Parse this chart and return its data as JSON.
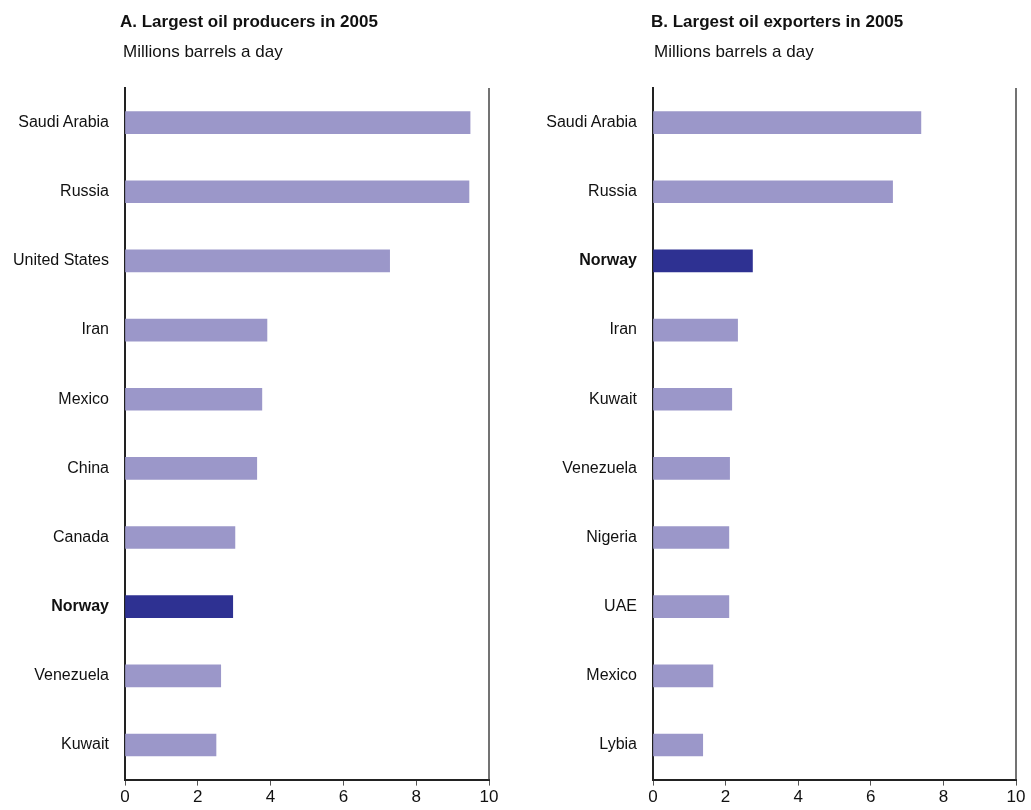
{
  "chart_data": [
    {
      "type": "bar",
      "orientation": "horizontal",
      "title": "A. Largest oil producers in 2005",
      "subtitle": "Millions barrels a day",
      "categories": [
        "Saudi Arabia",
        "Russia",
        "United States",
        "Iran",
        "Mexico",
        "China",
        "Canada",
        "Norway",
        "Venezuela",
        "Kuwait"
      ],
      "values": [
        9.48,
        9.45,
        7.27,
        3.9,
        3.76,
        3.62,
        3.02,
        2.96,
        2.63,
        2.5
      ],
      "colors": [
        "#9b97c9",
        "#9b97c9",
        "#9b97c9",
        "#9b97c9",
        "#9b97c9",
        "#9b97c9",
        "#9b97c9",
        "#2e3192",
        "#9b97c9",
        "#9b97c9"
      ],
      "xlim": [
        0,
        10
      ],
      "xticks": [
        0,
        2,
        4,
        6,
        8,
        10
      ],
      "grid": false,
      "legend": false
    },
    {
      "type": "bar",
      "orientation": "horizontal",
      "title": "B. Largest oil exporters in 2005",
      "subtitle": "Millions barrels a day",
      "categories": [
        "Saudi Arabia",
        "Russia",
        "Norway",
        "Iran",
        "Kuwait",
        "Venezuela",
        "Nigeria",
        "UAE",
        "Mexico",
        "Lybia"
      ],
      "values": [
        7.38,
        6.6,
        2.74,
        2.33,
        2.17,
        2.11,
        2.09,
        2.09,
        1.65,
        1.37
      ],
      "colors": [
        "#9b97c9",
        "#9b97c9",
        "#2e3192",
        "#9b97c9",
        "#9b97c9",
        "#9b97c9",
        "#9b97c9",
        "#9b97c9",
        "#9b97c9",
        "#9b97c9"
      ],
      "xlim": [
        0,
        10
      ],
      "xticks": [
        0,
        2,
        4,
        6,
        8,
        10
      ],
      "grid": false,
      "legend": false
    }
  ]
}
